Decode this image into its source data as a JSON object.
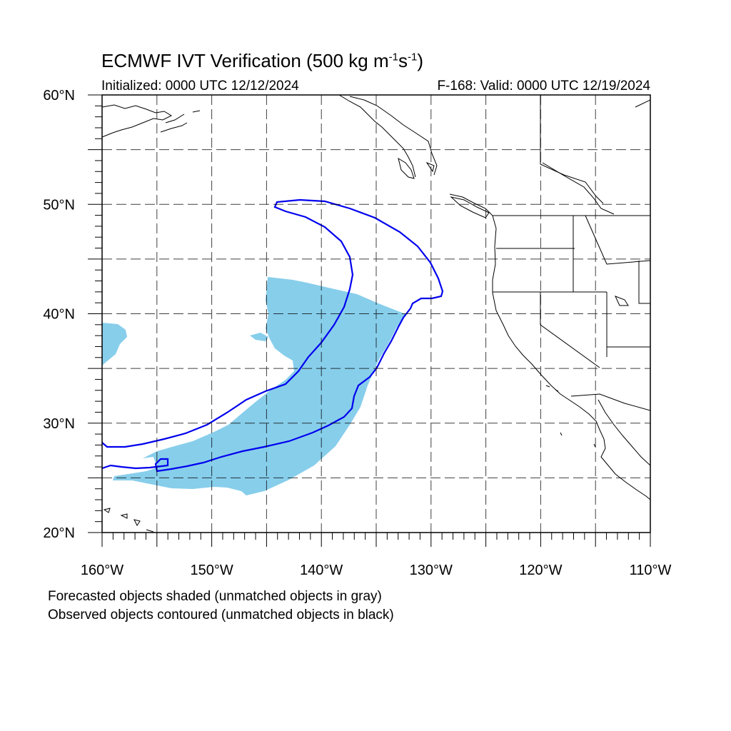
{
  "title": {
    "main": "ECMWF IVT Verification (500 kg m",
    "exp1": "-1",
    "mid": "s",
    "exp2": "-1",
    "end": ")"
  },
  "subtitle_left": "Initialized: 0000 UTC 12/12/2024",
  "subtitle_right": "F-168: Valid: 0000 UTC 12/19/2024",
  "lat_labels": [
    "60°N",
    "50°N",
    "40°N",
    "30°N",
    "20°N"
  ],
  "lon_labels": [
    "160°W",
    "150°W",
    "140°W",
    "130°W",
    "120°W",
    "110°W"
  ],
  "notes": [
    "Forecasted objects shaded (unmatched objects in gray)",
    "Observed objects contoured (unmatched objects in black)"
  ],
  "map": {
    "lon_range": [
      -160,
      -110
    ],
    "lat_range": [
      20,
      60
    ],
    "grid_lons": [
      -155,
      -150,
      -145,
      -140,
      -135,
      -130,
      -125,
      -120,
      -115
    ],
    "grid_lats": [
      25,
      30,
      35,
      40,
      45,
      50,
      55
    ],
    "forecast_fill_color": "#87CEEB",
    "observed_contour_color": "#0000EE",
    "coast_color": "#000000"
  }
}
